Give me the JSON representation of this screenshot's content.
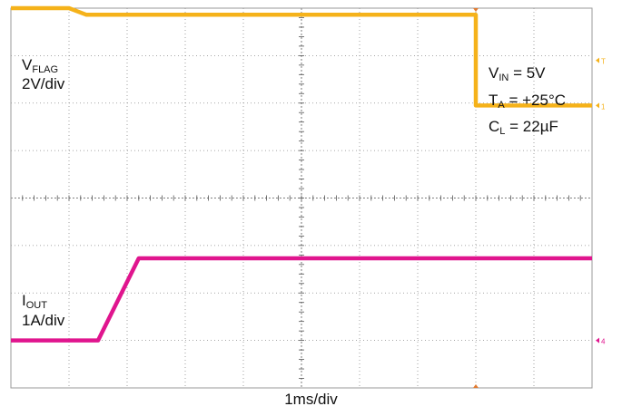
{
  "chart_data": {
    "type": "line",
    "xlabel": "1ms/div",
    "grid": true,
    "x_divisions": 10,
    "y_divisions": 8,
    "series": [
      {
        "name": "VFLAG",
        "scale": "2V/div",
        "color": "#F5B21A",
        "points_div": [
          [
            0,
            8.0
          ],
          [
            1.0,
            8.0
          ],
          [
            1.3,
            7.86
          ],
          [
            2.0,
            7.86
          ],
          [
            8.0,
            7.86
          ],
          [
            8.0,
            5.95
          ],
          [
            10.0,
            5.95
          ]
        ]
      },
      {
        "name": "IOUT",
        "scale": "1A/div",
        "color": "#E0158E",
        "points_div": [
          [
            0,
            1.0
          ],
          [
            1.5,
            1.0
          ],
          [
            2.2,
            2.73
          ],
          [
            10.0,
            2.73
          ]
        ]
      }
    ],
    "annotations": {
      "vflag_name_main": "V",
      "vflag_name_sub": "FLAG",
      "vflag_scale": "2V/div",
      "iout_name_main": "I",
      "iout_name_sub": "OUT",
      "iout_scale": "1A/div",
      "cond_vin_main": "V",
      "cond_vin_sub": "IN",
      "cond_vin_value": " = 5V",
      "cond_ta_main": "T",
      "cond_ta_sub": "A",
      "cond_ta_value": " = +25°C",
      "cond_cl_main": "C",
      "cond_cl_sub": "L",
      "cond_cl_value": " = 22µF"
    },
    "side_markers": {
      "trigger": "T",
      "ch1": "1",
      "ch4": "4"
    }
  }
}
